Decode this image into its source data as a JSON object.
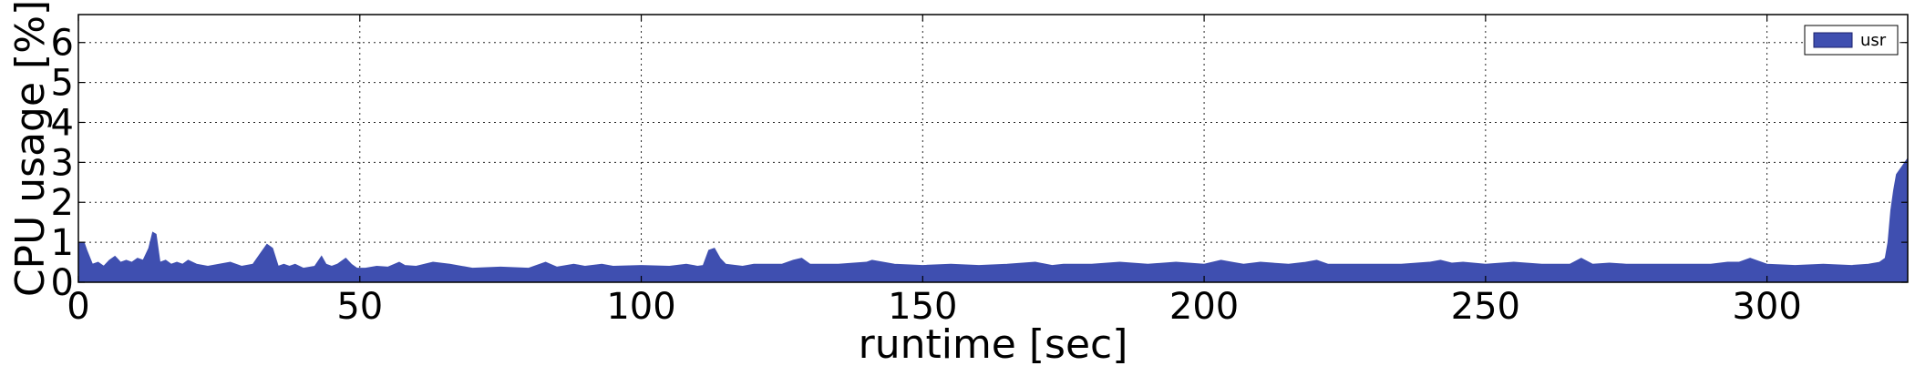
{
  "chart_data": {
    "type": "area",
    "title": "",
    "xlabel": "runtime [sec]",
    "ylabel": "CPU usage [%]",
    "xlim": [
      0,
      325
    ],
    "ylim": [
      0,
      6.7
    ],
    "xticks": [
      0,
      50,
      100,
      150,
      200,
      250,
      300
    ],
    "yticks": [
      0,
      1,
      2,
      3,
      4,
      5,
      6
    ],
    "grid": true,
    "legend_position": "top-right",
    "series": [
      {
        "name": "usr",
        "color": "#3f4fb0",
        "x": [
          0,
          1,
          1.5,
          2.5,
          3.5,
          4.5,
          5.5,
          6.5,
          7.5,
          8.5,
          9.5,
          10.5,
          11.5,
          12.5,
          13.2,
          13.8,
          14.5,
          15.5,
          16.5,
          17.5,
          18.5,
          19.5,
          21,
          23,
          25,
          27,
          29,
          31,
          32.5,
          33.5,
          34.5,
          35.5,
          36.5,
          37.5,
          38.5,
          40,
          42,
          43.2,
          44,
          45,
          46,
          47.5,
          48.5,
          49.5,
          51,
          53,
          55,
          57,
          58,
          60,
          63,
          66,
          70,
          75,
          80,
          83,
          85,
          88,
          90,
          93,
          95,
          100,
          105,
          108,
          110,
          111,
          112,
          113,
          114,
          115,
          118,
          120,
          125,
          127,
          128.5,
          130,
          135,
          140,
          141,
          145,
          150,
          155,
          160,
          165,
          170,
          173,
          175,
          180,
          185,
          190,
          195,
          200,
          203,
          205,
          207,
          210,
          215,
          218,
          220,
          222,
          225,
          230,
          235,
          240,
          242,
          244,
          246,
          250,
          255,
          260,
          265,
          267,
          269,
          272,
          275,
          280,
          285,
          290,
          293,
          295,
          297,
          300,
          305,
          310,
          315,
          318,
          320,
          321,
          321.5,
          322,
          322.5,
          323,
          324,
          325
        ],
        "values": [
          1.0,
          1.0,
          0.8,
          0.45,
          0.5,
          0.4,
          0.55,
          0.65,
          0.5,
          0.55,
          0.5,
          0.6,
          0.55,
          0.85,
          1.25,
          1.2,
          0.5,
          0.55,
          0.45,
          0.5,
          0.45,
          0.55,
          0.45,
          0.4,
          0.45,
          0.5,
          0.4,
          0.45,
          0.75,
          0.95,
          0.85,
          0.4,
          0.45,
          0.4,
          0.45,
          0.35,
          0.4,
          0.65,
          0.45,
          0.4,
          0.45,
          0.6,
          0.45,
          0.35,
          0.35,
          0.4,
          0.38,
          0.5,
          0.42,
          0.4,
          0.5,
          0.45,
          0.35,
          0.38,
          0.35,
          0.5,
          0.38,
          0.45,
          0.4,
          0.45,
          0.4,
          0.42,
          0.4,
          0.45,
          0.4,
          0.42,
          0.8,
          0.85,
          0.6,
          0.45,
          0.4,
          0.45,
          0.45,
          0.55,
          0.6,
          0.45,
          0.45,
          0.5,
          0.55,
          0.45,
          0.42,
          0.45,
          0.42,
          0.45,
          0.5,
          0.42,
          0.45,
          0.45,
          0.5,
          0.45,
          0.5,
          0.45,
          0.55,
          0.5,
          0.45,
          0.5,
          0.45,
          0.5,
          0.55,
          0.45,
          0.45,
          0.45,
          0.45,
          0.5,
          0.55,
          0.48,
          0.5,
          0.45,
          0.5,
          0.45,
          0.45,
          0.6,
          0.45,
          0.48,
          0.45,
          0.45,
          0.45,
          0.45,
          0.5,
          0.5,
          0.6,
          0.45,
          0.42,
          0.45,
          0.42,
          0.45,
          0.5,
          0.6,
          1.0,
          1.8,
          2.3,
          2.7,
          2.9,
          3.1
        ]
      }
    ]
  }
}
